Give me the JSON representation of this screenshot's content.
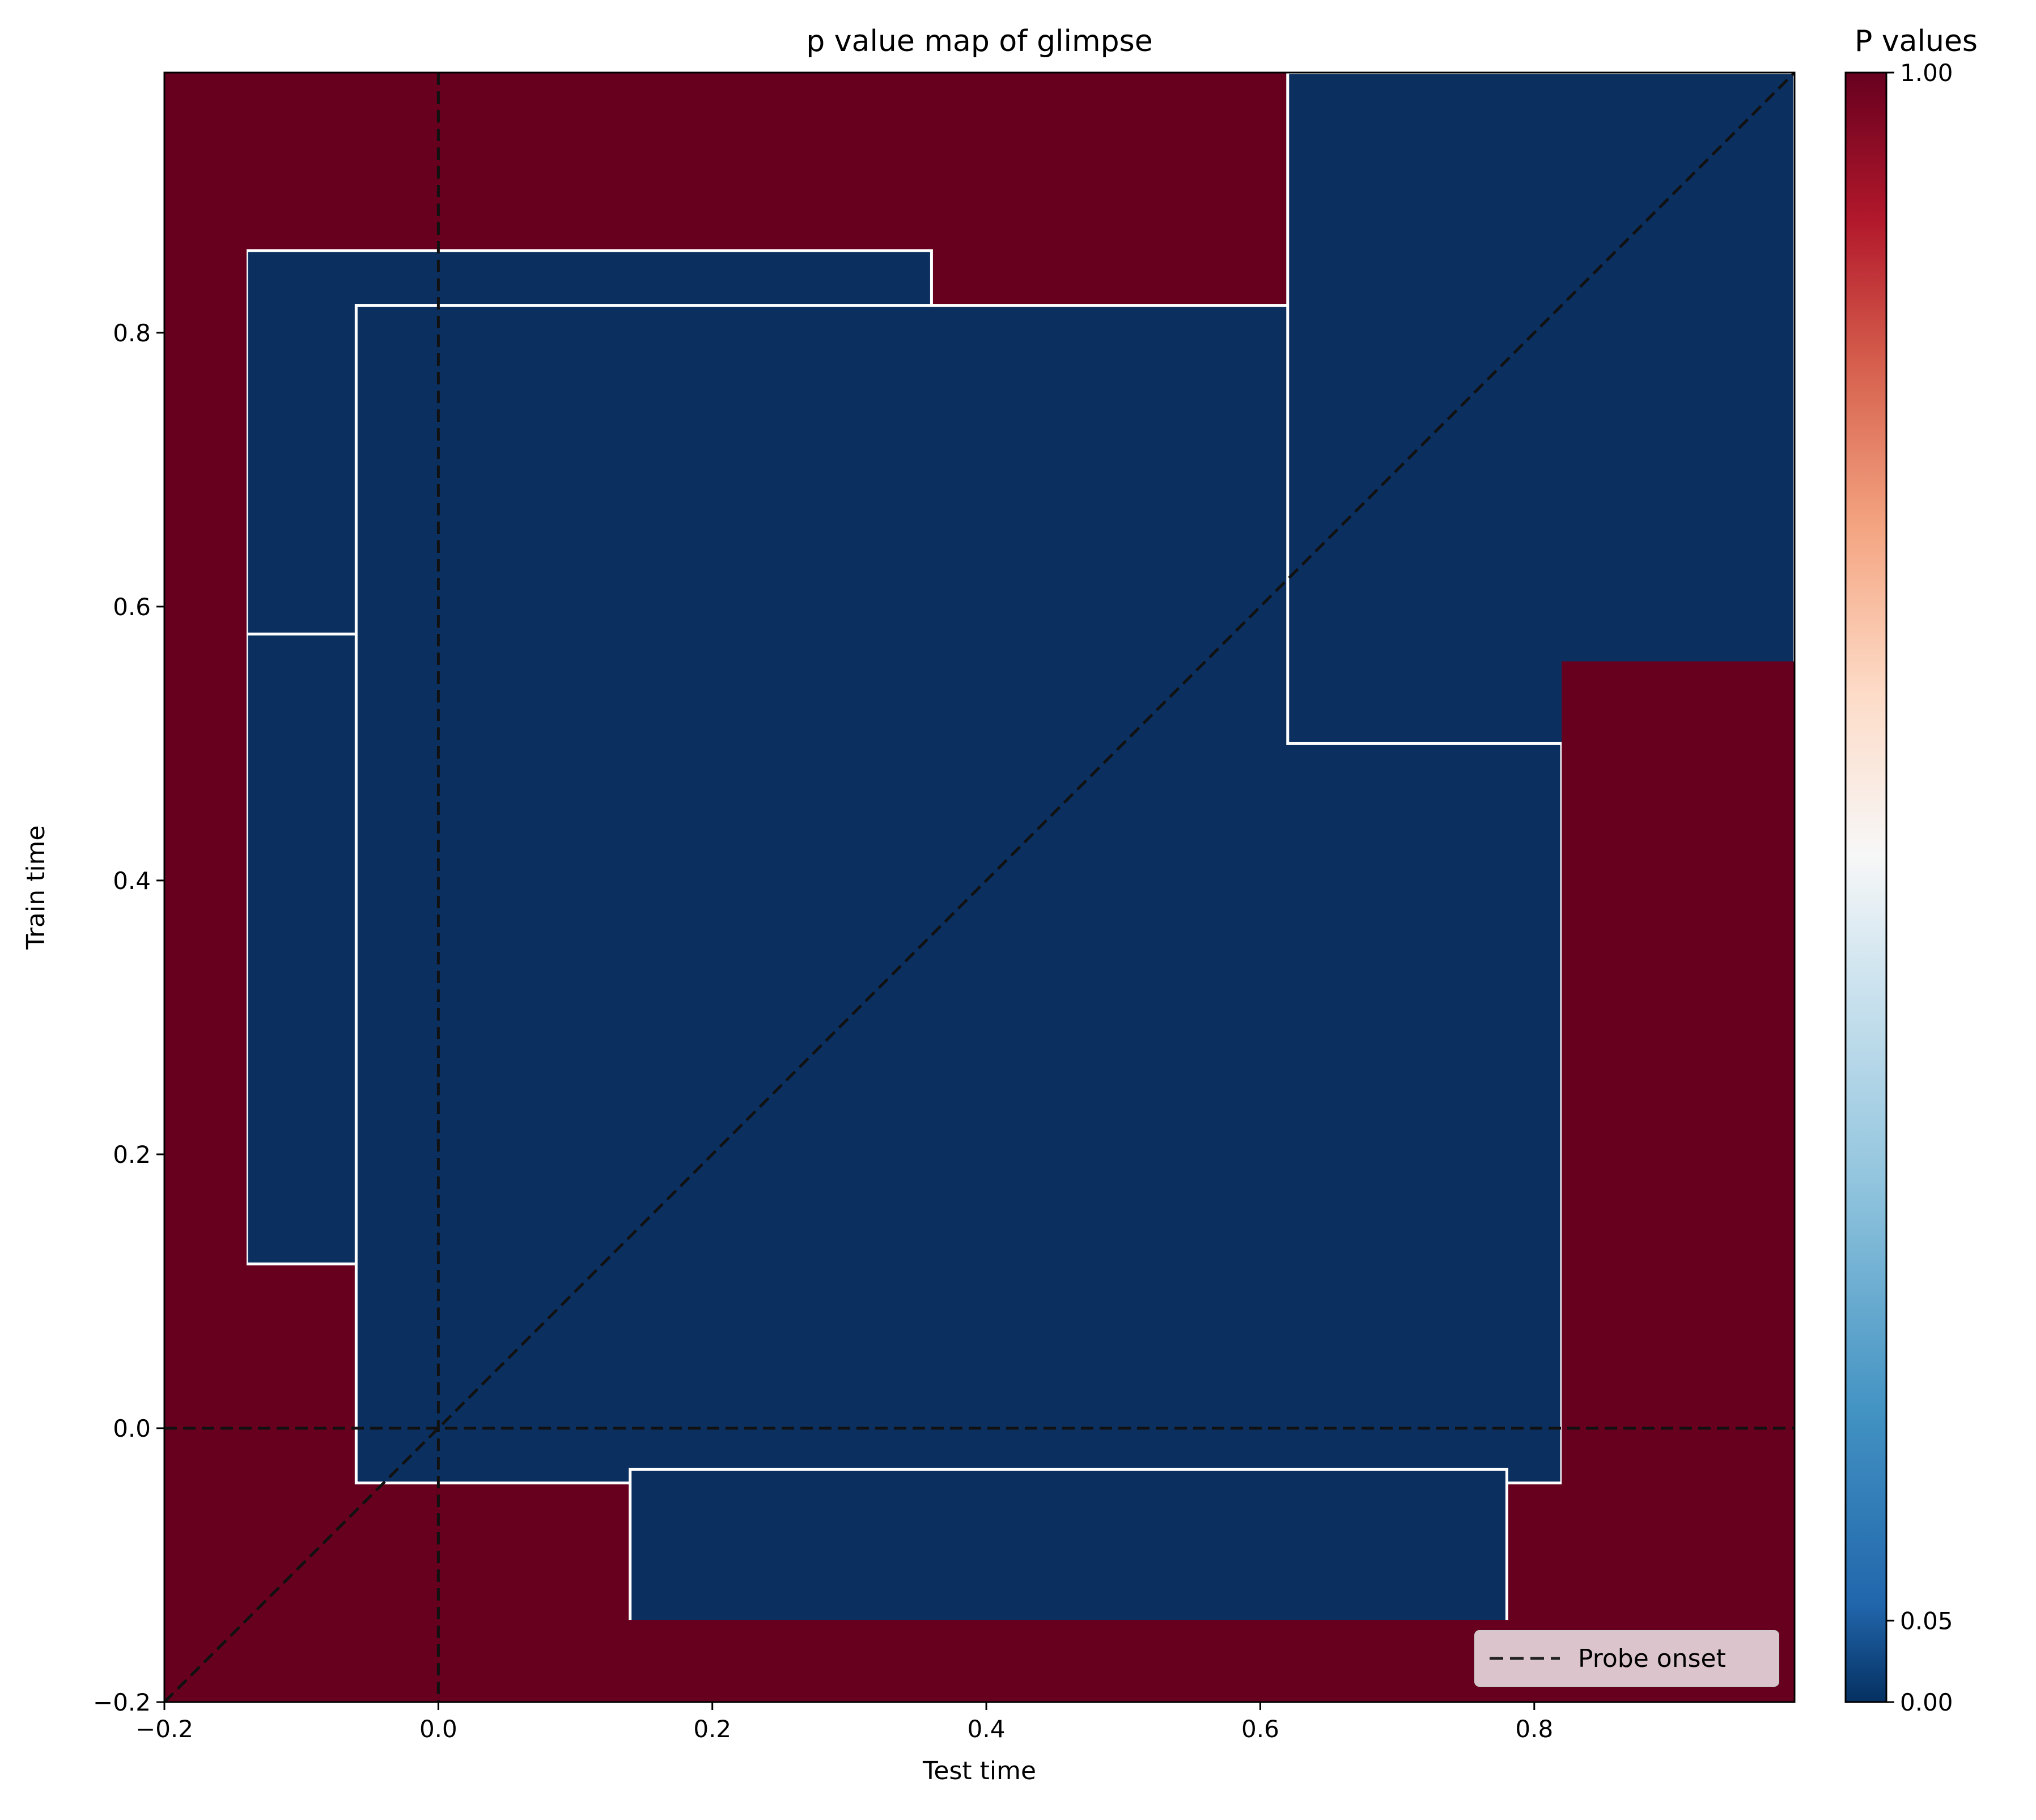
{
  "chart_data": {
    "type": "heatmap",
    "title": "p value map of glimpse",
    "xlabel": "Test time",
    "ylabel": "Train time",
    "xlim": [
      -0.2,
      0.99
    ],
    "ylim": [
      -0.2,
      0.99
    ],
    "xticks": [
      {
        "value": -0.2,
        "label": "−0.2"
      },
      {
        "value": 0.0,
        "label": "0.0"
      },
      {
        "value": 0.2,
        "label": "0.2"
      },
      {
        "value": 0.4,
        "label": "0.4"
      },
      {
        "value": 0.6,
        "label": "0.6"
      },
      {
        "value": 0.8,
        "label": "0.8"
      }
    ],
    "yticks": [
      {
        "value": -0.2,
        "label": "−0.2"
      },
      {
        "value": 0.0,
        "label": "0.0"
      },
      {
        "value": 0.2,
        "label": "0.2"
      },
      {
        "value": 0.4,
        "label": "0.4"
      },
      {
        "value": 0.6,
        "label": "0.6"
      },
      {
        "value": 0.8,
        "label": "0.8"
      }
    ],
    "colorbar": {
      "title": "P values",
      "colormap": "RdBu_r",
      "range": [
        0.0,
        1.0
      ],
      "ticks": [
        {
          "value": 0.0,
          "label": "0.00"
        },
        {
          "value": 0.05,
          "label": "0.05"
        },
        {
          "value": 1.0,
          "label": "1.00"
        }
      ]
    },
    "significant_regions_p_below_0_05": [
      {
        "x": [
          -0.14,
          0.36
        ],
        "y": [
          0.5,
          0.86
        ]
      },
      {
        "x": [
          -0.14,
          0.24
        ],
        "y": [
          0.12,
          0.58
        ]
      },
      {
        "x": [
          -0.06,
          0.82
        ],
        "y": [
          -0.04,
          0.82
        ]
      },
      {
        "x": [
          0.14,
          0.78
        ],
        "y": [
          -0.15,
          -0.03
        ]
      },
      {
        "x": [
          0.62,
          0.99
        ],
        "y": [
          0.5,
          0.99
        ]
      }
    ],
    "nonsignificant_regions": [
      {
        "x": [
          -0.2,
          0.99
        ],
        "y": [
          -0.2,
          -0.14
        ]
      },
      {
        "x": [
          -0.2,
          -0.14
        ],
        "y": [
          -0.2,
          0.99
        ]
      },
      {
        "x": [
          0.82,
          0.99
        ],
        "y": [
          -0.2,
          0.56
        ]
      }
    ],
    "reference_lines": [
      {
        "type": "vertical",
        "x": 0.0,
        "style": "dashed"
      },
      {
        "type": "horizontal",
        "y": 0.0,
        "style": "dashed"
      },
      {
        "type": "diagonal",
        "from": [
          -0.2,
          -0.2
        ],
        "to": [
          0.99,
          0.99
        ],
        "style": "dashed"
      }
    ],
    "legend": {
      "placement": "bottom-right",
      "entries": [
        {
          "label": "Probe onset",
          "style": "dashed",
          "color": "#222222"
        }
      ]
    },
    "colors": {
      "nonsignificant": "#67001f",
      "significant": "#0b3060",
      "contour": "#ffffff",
      "refline": "#111111"
    },
    "grid": false
  }
}
